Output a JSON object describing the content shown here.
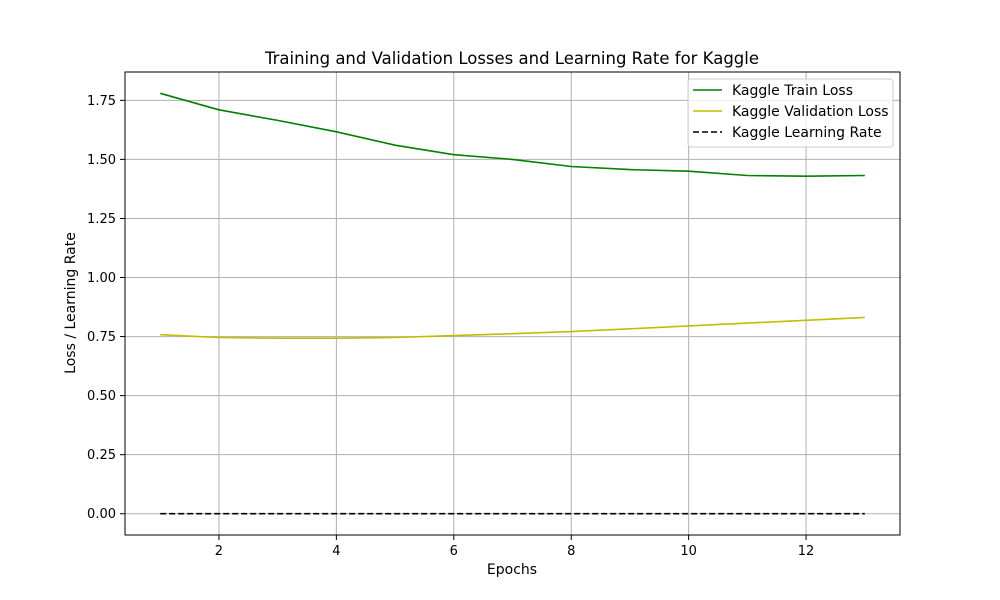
{
  "chart_data": {
    "type": "line",
    "title": "Training and Validation Losses and Learning Rate for Kaggle",
    "xlabel": "Epochs",
    "ylabel": "Loss / Learning Rate",
    "xlim": [
      0.4,
      13.6
    ],
    "ylim": [
      -0.09,
      1.87
    ],
    "x_ticks": [
      2,
      4,
      6,
      8,
      10,
      12
    ],
    "y_ticks": [
      0.0,
      0.25,
      0.5,
      0.75,
      1.0,
      1.25,
      1.5,
      1.75
    ],
    "y_tick_labels": [
      "0.00",
      "0.25",
      "0.50",
      "0.75",
      "1.00",
      "1.25",
      "1.50",
      "1.75"
    ],
    "grid": true,
    "legend_position": "top-right",
    "x": [
      1,
      2,
      3,
      4,
      5,
      6,
      7,
      8,
      9,
      10,
      11,
      12,
      13
    ],
    "series": [
      {
        "name": "Kaggle Train Loss",
        "color": "#008000",
        "style": "solid",
        "values": [
          1.78,
          1.71,
          1.665,
          1.617,
          1.56,
          1.52,
          1.5,
          1.47,
          1.457,
          1.45,
          1.432,
          1.429,
          1.432
        ]
      },
      {
        "name": "Kaggle Validation Loss",
        "color": "#bfbf00",
        "style": "solid",
        "values": [
          0.758,
          0.746,
          0.743,
          0.743,
          0.746,
          0.754,
          0.762,
          0.771,
          0.783,
          0.795,
          0.807,
          0.819,
          0.831
        ]
      },
      {
        "name": "Kaggle Learning Rate",
        "color": "#000000",
        "style": "dashed",
        "values": [
          0.0001,
          0.0001,
          0.0001,
          0.0001,
          0.0001,
          0.0001,
          0.0001,
          0.0001,
          0.0001,
          0.0001,
          0.0001,
          0.0001,
          0.0001
        ]
      }
    ]
  }
}
